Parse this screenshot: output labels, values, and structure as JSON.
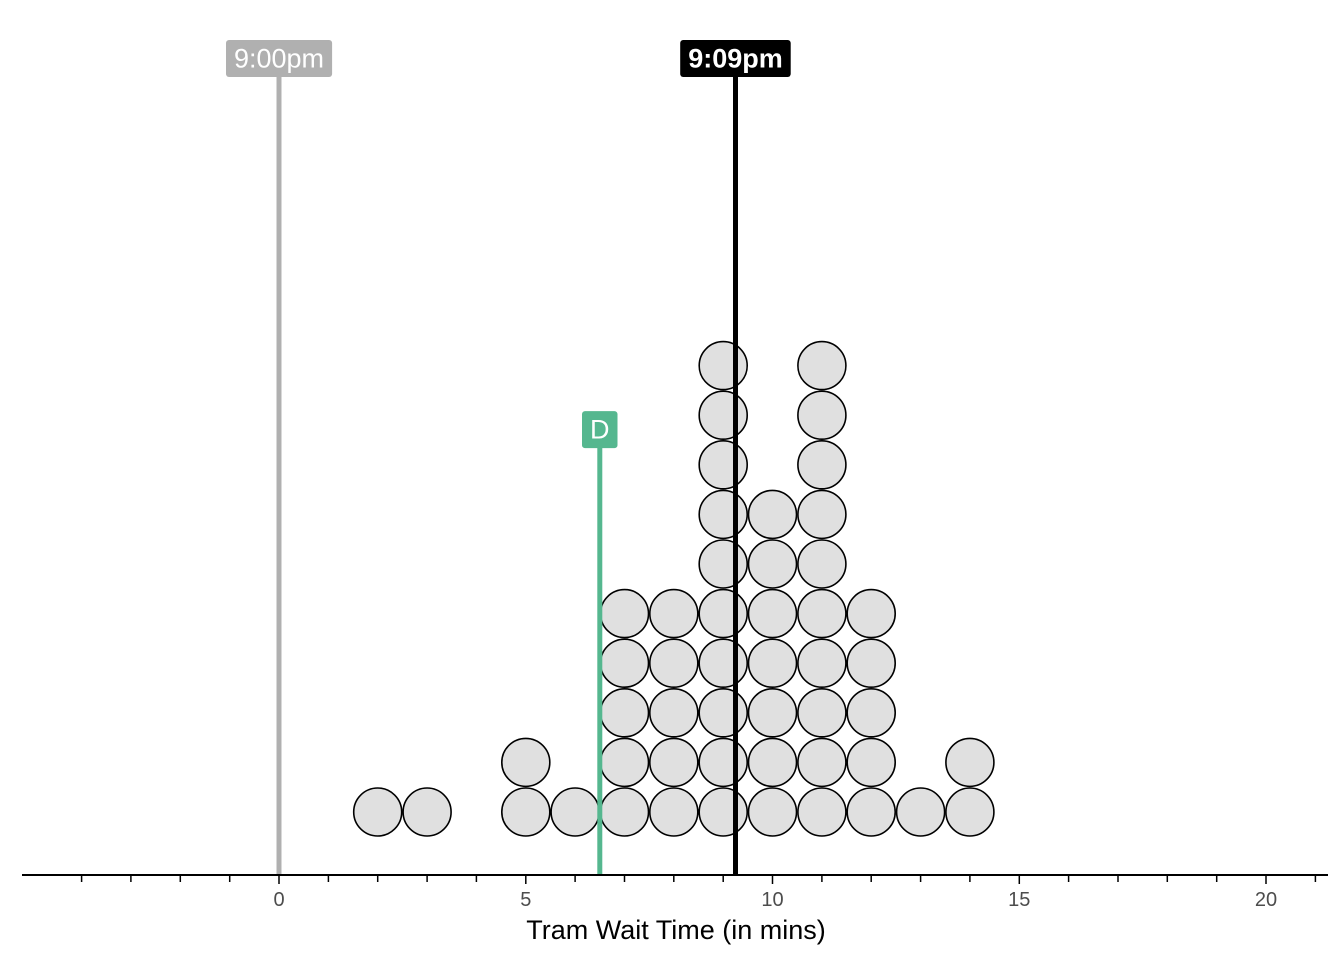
{
  "chart_data": {
    "type": "dotplot",
    "xlabel": "Tram Wait Time (in mins)",
    "xlim": [
      -5.2,
      21.2
    ],
    "xticks_major": [
      0,
      5,
      10,
      15,
      20
    ],
    "xticks_minor": [
      -4,
      -3,
      -2,
      -1,
      1,
      2,
      3,
      4,
      6,
      7,
      8,
      9,
      11,
      12,
      13,
      14,
      16,
      17,
      18,
      19,
      21
    ],
    "tick_labels": [
      "0",
      "5",
      "10",
      "15",
      "20"
    ],
    "dot_fill": "#e0e0e0",
    "dot_stroke": "#000000",
    "dots": [
      {
        "x": 2,
        "count": 1
      },
      {
        "x": 3,
        "count": 1
      },
      {
        "x": 5,
        "count": 2
      },
      {
        "x": 6,
        "count": 1
      },
      {
        "x": 7,
        "count": 5
      },
      {
        "x": 8,
        "count": 5
      },
      {
        "x": 9,
        "count": 10
      },
      {
        "x": 10,
        "count": 7
      },
      {
        "x": 11,
        "count": 10
      },
      {
        "x": 12,
        "count": 5
      },
      {
        "x": 13,
        "count": 1
      },
      {
        "x": 14,
        "count": 2
      }
    ],
    "reference_lines": [
      {
        "x": 0,
        "label": "9:00pm",
        "color": "#b0b0b0",
        "bold": false,
        "height": "full"
      },
      {
        "x": 9.25,
        "label": "9:09pm",
        "color": "#000000",
        "bold": true,
        "height": "full"
      },
      {
        "x": 6.5,
        "label": "D",
        "color": "#55b78f",
        "bold": false,
        "height": "partial",
        "top_y": 8.7
      }
    ],
    "grid": false
  }
}
